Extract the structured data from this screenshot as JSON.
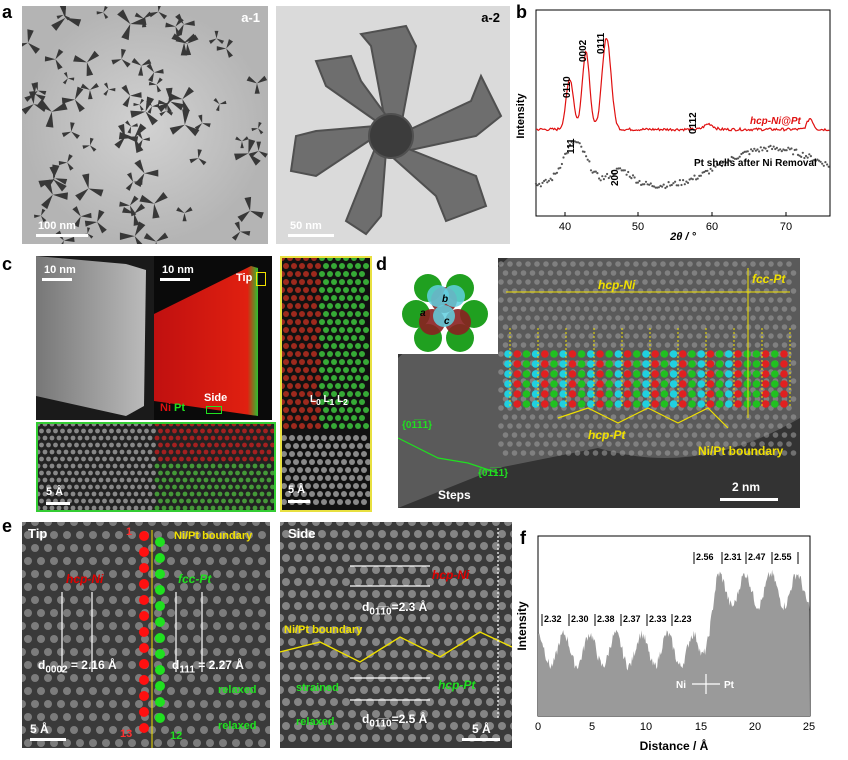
{
  "panels": {
    "a": {
      "letter": "a",
      "sub1": "a-1",
      "sub2": "a-2",
      "scale1": "100 nm",
      "scale2": "50 nm"
    },
    "b": {
      "letter": "b",
      "xlabel": "2θ / °",
      "ylabel": "Intensity",
      "peaks_top": [
        "01̅1̅0",
        "0002",
        "01̅1̅1",
        "01̅1̅2"
      ],
      "peaks_top_text": [
        "0110",
        "0002",
        "0111",
        "0112"
      ],
      "peaks_bottom_text": [
        "111",
        "200"
      ],
      "series_top": "hcp-Ni@Pt",
      "series_bottom": "Pt shells after Ni Removal",
      "xticks": [
        "40",
        "50",
        "60",
        "70"
      ]
    },
    "c": {
      "letter": "c",
      "scale1": "10 nm",
      "scale2": "10 nm",
      "tip": "Tip",
      "side": "Side",
      "ni": "Ni",
      "pt": "Pt",
      "l0": "L",
      "l1": "L",
      "l2": "L",
      "l0s": "0",
      "l1s": "1",
      "l2s": "2",
      "scale3": "5 Å",
      "scale4": "5 Å"
    },
    "d": {
      "letter": "d",
      "hcp_ni": "hcp-Ni",
      "fcc_pt": "fcc-Pt",
      "hcp_pt": "hcp-Pt",
      "boundary": "Ni/Pt boundary",
      "steps": "Steps",
      "facet1": "{01̅1̅1}",
      "facet2": "{01̅1̅1}",
      "scale": "2 nm",
      "atom_a": "a",
      "atom_b": "b",
      "atom_c": "c"
    },
    "e": {
      "letter": "e",
      "tip": "Tip",
      "side": "Side",
      "boundary_tip": "Ni/Pt boundary",
      "boundary_side": "Ni/Pt boundary",
      "hcp_ni": "hcp-Ni",
      "hcp_pt": "hcp-Pt",
      "fcc_pt": "fcc-Pt",
      "d0002": "d",
      "d0002_sub": "0002",
      "d0002_val": " = 2.16 Å",
      "d111": "d",
      "d111_sub": "111",
      "d111_val": " = 2.27 Å",
      "d_ni": "d",
      "d_ni_sub": "01̅1̅0",
      "d_ni_val": "=2.3 Å",
      "d_pt": "d",
      "d_pt_sub": "01̅1̅0",
      "d_pt_val": "=2.5 Å",
      "relaxed": "relaxed",
      "strained": "strained",
      "n1": "1",
      "n13": "13",
      "n12": "12",
      "scale1": "5 Å",
      "scale2": "5 Å"
    },
    "f": {
      "letter": "f",
      "xlabel": "Distance / Å",
      "ylabel": "Intensity",
      "labels": [
        "2.32",
        "2.30",
        "2.38",
        "2.37",
        "2.33",
        "2.23",
        "2.56",
        "2.31",
        "2.47",
        "2.55"
      ],
      "xticks": [
        "0",
        "5",
        "10",
        "15",
        "20",
        "25"
      ],
      "ni": "Ni",
      "pt": "Pt"
    }
  },
  "chart_data": [
    {
      "type": "line",
      "title": "",
      "xlabel": "2θ / °",
      "ylabel": "Intensity",
      "xlim": [
        35,
        75
      ],
      "series": [
        {
          "name": "hcp-Ni@Pt",
          "color": "#e01010"
        },
        {
          "name": "Pt shells after Ni Removal",
          "color": "#555555"
        }
      ]
    },
    {
      "type": "area",
      "title": "",
      "xlabel": "Distance / Å",
      "ylabel": "Intensity",
      "xlim": [
        0,
        25
      ],
      "spacings": [
        2.32,
        2.3,
        2.38,
        2.37,
        2.33,
        2.23,
        2.56,
        2.31,
        2.47,
        2.55
      ]
    }
  ]
}
